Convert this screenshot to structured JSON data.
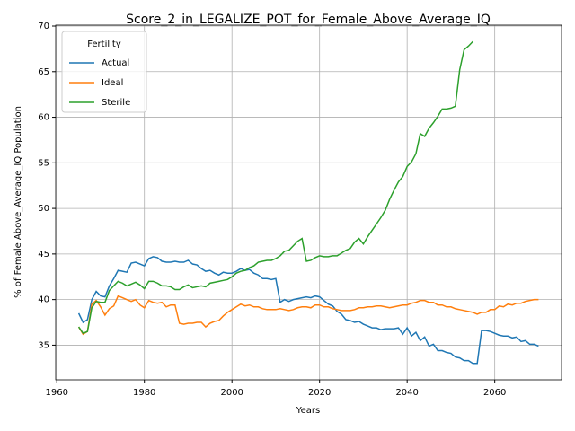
{
  "chart_data": {
    "type": "line",
    "title": "Score_2_in_LEGALIZE_POT_for_Female_Above_Average_IQ",
    "x_label": "Years",
    "y_label": "% of Female Above_Average_IQ Population",
    "legend_title": "Fertility",
    "legend": "upper left",
    "grid": true,
    "xlim": [
      1959.75,
      2075.25
    ],
    "ylim": [
      31.2,
      70.1
    ],
    "xticks": [
      1960,
      1980,
      2000,
      2020,
      2040,
      2060
    ],
    "yticks": [
      35,
      40,
      45,
      50,
      55,
      60,
      65,
      70
    ],
    "x": [
      1965,
      1966,
      1967,
      1968,
      1969,
      1970,
      1971,
      1972,
      1973,
      1974,
      1975,
      1976,
      1977,
      1978,
      1979,
      1980,
      1981,
      1982,
      1983,
      1984,
      1985,
      1986,
      1987,
      1988,
      1989,
      1990,
      1991,
      1992,
      1993,
      1994,
      1995,
      1996,
      1997,
      1998,
      1999,
      2000,
      2001,
      2002,
      2003,
      2004,
      2005,
      2006,
      2007,
      2008,
      2009,
      2010,
      2011,
      2012,
      2013,
      2014,
      2015,
      2016,
      2017,
      2018,
      2019,
      2020,
      2021,
      2022,
      2023,
      2024,
      2025,
      2026,
      2027,
      2028,
      2029,
      2030,
      2031,
      2032,
      2033,
      2034,
      2035,
      2036,
      2037,
      2038,
      2039,
      2040,
      2041,
      2042,
      2043,
      2044,
      2045,
      2046,
      2047,
      2048,
      2049,
      2050,
      2051,
      2052,
      2053,
      2054,
      2055,
      2056,
      2057,
      2058,
      2059,
      2060,
      2061,
      2062,
      2063,
      2064,
      2065,
      2066,
      2067,
      2068,
      2069,
      2070
    ],
    "series": [
      {
        "name": "Actual",
        "color": "#1f77b4",
        "values": [
          38.5,
          37.5,
          37.8,
          40.0,
          40.9,
          40.4,
          40.3,
          41.5,
          42.3,
          43.2,
          43.1,
          43.0,
          44.0,
          44.1,
          43.9,
          43.7,
          44.5,
          44.7,
          44.6,
          44.2,
          44.1,
          44.1,
          44.2,
          44.1,
          44.1,
          44.3,
          43.9,
          43.8,
          43.4,
          43.1,
          43.2,
          42.9,
          42.7,
          43.0,
          42.9,
          42.9,
          43.1,
          43.4,
          43.2,
          43.3,
          42.9,
          42.7,
          42.3,
          42.3,
          42.2,
          42.3,
          39.7,
          40.0,
          39.8,
          40.0,
          40.1,
          40.2,
          40.3,
          40.2,
          40.4,
          40.3,
          39.9,
          39.5,
          39.3,
          38.7,
          38.4,
          37.8,
          37.7,
          37.5,
          37.6,
          37.3,
          37.1,
          36.9,
          36.9,
          36.7,
          36.8,
          36.8,
          36.8,
          36.9,
          36.2,
          36.9,
          36.0,
          36.4,
          35.5,
          35.9,
          34.9,
          35.1,
          34.4,
          34.4,
          34.2,
          34.1,
          33.7,
          33.6,
          33.3,
          33.3,
          33.0,
          33.0,
          36.6,
          36.6,
          36.5,
          36.3,
          36.1,
          36.0,
          36.0,
          35.8,
          35.9,
          35.4,
          35.5,
          35.1,
          35.1,
          34.9
        ]
      },
      {
        "name": "Ideal",
        "color": "#ff7f0e",
        "values": [
          37.0,
          36.2,
          36.5,
          39.5,
          39.9,
          39.2,
          38.3,
          39.0,
          39.3,
          40.4,
          40.2,
          40.0,
          39.8,
          40.0,
          39.4,
          39.1,
          39.9,
          39.7,
          39.6,
          39.7,
          39.2,
          39.4,
          39.4,
          37.4,
          37.3,
          37.4,
          37.4,
          37.5,
          37.5,
          37.0,
          37.4,
          37.6,
          37.7,
          38.2,
          38.6,
          38.9,
          39.2,
          39.5,
          39.3,
          39.4,
          39.2,
          39.2,
          39.0,
          38.9,
          38.9,
          38.9,
          39.0,
          38.9,
          38.8,
          38.9,
          39.1,
          39.2,
          39.2,
          39.1,
          39.4,
          39.4,
          39.2,
          39.2,
          39.0,
          38.9,
          38.8,
          38.8,
          38.8,
          38.9,
          39.1,
          39.1,
          39.2,
          39.2,
          39.3,
          39.3,
          39.2,
          39.1,
          39.2,
          39.3,
          39.4,
          39.4,
          39.6,
          39.7,
          39.9,
          39.9,
          39.7,
          39.7,
          39.4,
          39.4,
          39.2,
          39.2,
          39.0,
          38.9,
          38.8,
          38.7,
          38.6,
          38.4,
          38.6,
          38.6,
          38.9,
          38.9,
          39.3,
          39.2,
          39.5,
          39.4,
          39.6,
          39.6,
          39.8,
          39.9,
          40.0,
          40.0
        ]
      },
      {
        "name": "Sterile",
        "color": "#2ca02c",
        "values": [
          37.0,
          36.3,
          36.5,
          39.1,
          39.8,
          39.7,
          39.7,
          41.0,
          41.5,
          42.0,
          41.8,
          41.5,
          41.7,
          41.9,
          41.6,
          41.2,
          42.0,
          42.0,
          41.8,
          41.5,
          41.5,
          41.4,
          41.1,
          41.1,
          41.4,
          41.6,
          41.3,
          41.4,
          41.5,
          41.4,
          41.8,
          41.9,
          42.0,
          42.1,
          42.2,
          42.5,
          42.9,
          43.1,
          43.2,
          43.5,
          43.7,
          44.1,
          44.2,
          44.3,
          44.3,
          44.5,
          44.8,
          45.3,
          45.4,
          45.9,
          46.4,
          46.7,
          44.2,
          44.3,
          44.6,
          44.8,
          44.7,
          44.7,
          44.8,
          44.8,
          45.1,
          45.4,
          45.6,
          46.3,
          46.7,
          46.1,
          46.9,
          47.6,
          48.3,
          49.0,
          49.8,
          51.0,
          52.0,
          52.9,
          53.5,
          54.6,
          55.1,
          56.0,
          58.2,
          57.9,
          58.8,
          59.4,
          60.1,
          60.9,
          60.9,
          61.0,
          61.2,
          65.2,
          67.4,
          67.8,
          68.3,
          null,
          null,
          null,
          null,
          null,
          null,
          null,
          null,
          null,
          null,
          null,
          null,
          null,
          null,
          null
        ]
      }
    ]
  }
}
